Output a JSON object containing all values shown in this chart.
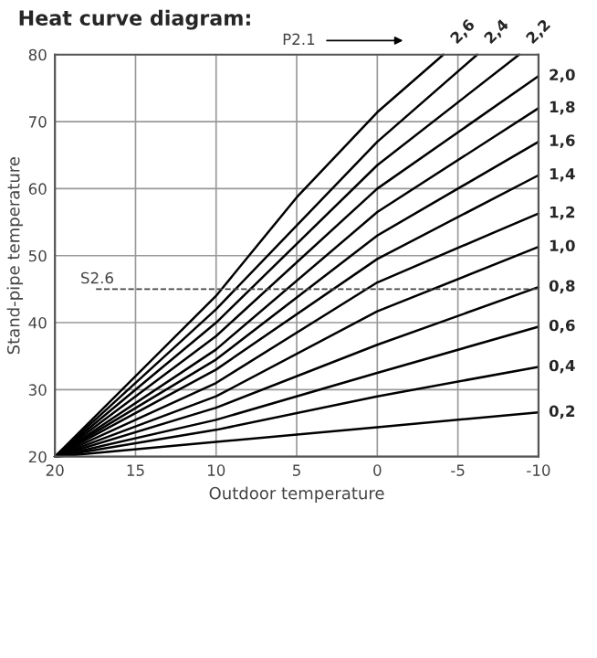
{
  "chart_data": {
    "type": "line",
    "title": "Heat curve diagram:",
    "xlabel": "Outdoor temperature",
    "ylabel": "Stand-pipe temperature",
    "xlim": [
      20,
      -10
    ],
    "xticks": [
      20,
      15,
      10,
      5,
      0,
      -5,
      -10
    ],
    "ylim": [
      20,
      80
    ],
    "yticks": [
      20,
      30,
      40,
      50,
      60,
      70,
      80
    ],
    "grid": true,
    "marker": "none",
    "line_style": "solid",
    "series": [
      {
        "name": "2,6",
        "color": "#000000",
        "x": [
          20,
          10,
          5,
          0,
          -4.1
        ],
        "values": [
          20,
          44,
          58.7,
          71.4,
          80
        ]
      },
      {
        "name": "2,4",
        "color": "#000000",
        "x": [
          20,
          10,
          0,
          -6.2
        ],
        "values": [
          20,
          42,
          67,
          80
        ]
      },
      {
        "name": "2,2",
        "color": "#000000",
        "x": [
          20,
          10,
          0,
          -8.8
        ],
        "values": [
          20,
          40,
          63.5,
          80
        ]
      },
      {
        "name": "2,0",
        "color": "#000000",
        "x": [
          20,
          10,
          0,
          -10
        ],
        "values": [
          20,
          38,
          60,
          76.8
        ]
      },
      {
        "name": "1,8",
        "color": "#000000",
        "x": [
          20,
          10,
          0,
          -10
        ],
        "values": [
          20,
          36,
          56.5,
          72
        ]
      },
      {
        "name": "1,6",
        "color": "#000000",
        "x": [
          20,
          10,
          0,
          -10
        ],
        "values": [
          20,
          34.5,
          53,
          67
        ]
      },
      {
        "name": "1,4",
        "color": "#000000",
        "x": [
          20,
          10,
          0,
          -10
        ],
        "values": [
          20,
          33,
          49.5,
          62
        ]
      },
      {
        "name": "1,2",
        "color": "#000000",
        "x": [
          20,
          10,
          0,
          -10
        ],
        "values": [
          20,
          31,
          46,
          56.3
        ]
      },
      {
        "name": "1,0",
        "color": "#000000",
        "x": [
          20,
          10,
          0,
          -10
        ],
        "values": [
          20,
          29,
          41.7,
          51.3
        ]
      },
      {
        "name": "0,8",
        "color": "#000000",
        "x": [
          20,
          10,
          0,
          -10
        ],
        "values": [
          20,
          27.3,
          36.7,
          45.3
        ]
      },
      {
        "name": "0,6",
        "color": "#000000",
        "x": [
          20,
          10,
          0,
          -10
        ],
        "values": [
          20,
          25.5,
          32.5,
          39.4
        ]
      },
      {
        "name": "0,4",
        "color": "#000000",
        "x": [
          20,
          10,
          0,
          -10
        ],
        "values": [
          20,
          24,
          29,
          33.4
        ]
      },
      {
        "name": "0,2",
        "color": "#000000",
        "x": [
          20,
          10,
          0,
          -10
        ],
        "values": [
          20,
          22.2,
          24.4,
          26.6
        ]
      }
    ],
    "ref_lines": [
      {
        "axis": "y",
        "value": 45,
        "label": "S2.6",
        "color": "#444444",
        "line_style": "dashed"
      }
    ],
    "annotations": [
      "P2.1"
    ]
  }
}
